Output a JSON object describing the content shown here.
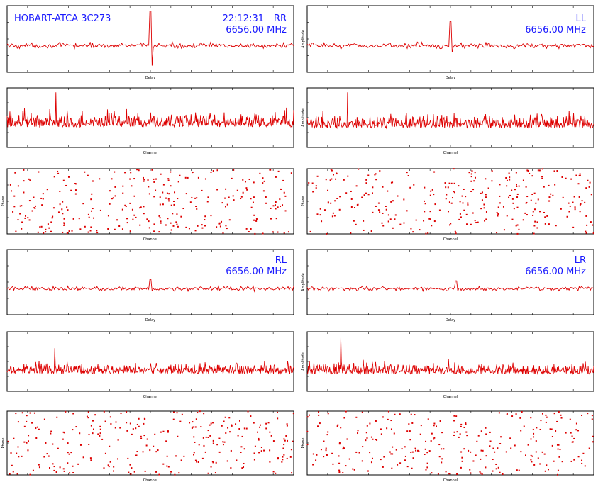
{
  "header": {
    "source": "HOBART-ATCA 3C273",
    "time": "22:12:31"
  },
  "colors": {
    "trace": "#dd0000",
    "annotation": "#1a1aff",
    "axis": "#000000"
  },
  "chart_data": [
    {
      "id": "rr-delay",
      "type": "line",
      "pol": "RR",
      "freq": "6656.00 MHz",
      "xlabel": "Delay",
      "ylabel": "",
      "xlim": [
        -256,
        256
      ],
      "ylim": [
        -1,
        1.5
      ],
      "baseline": 0,
      "noise": 0.07,
      "spike_x": 0,
      "spike_up": 1.3,
      "spike_down": -0.75,
      "points": 256
    },
    {
      "id": "ll-delay",
      "type": "line",
      "pol": "LL",
      "freq": "6656.00 MHz",
      "xlabel": "Delay",
      "ylabel": "Amplitude",
      "xlim": [
        -256,
        256
      ],
      "ylim": [
        -1,
        1.5
      ],
      "baseline": 0,
      "noise": 0.07,
      "spike_x": 0,
      "spike_up": 0.9,
      "spike_down": -0.25,
      "points": 256
    },
    {
      "id": "rr-channel",
      "type": "line",
      "pol": "RR",
      "xlabel": "Channel",
      "ylabel": "",
      "xlim": [
        0,
        512
      ],
      "ylim": [
        -0.5,
        1.5
      ],
      "baseline": 0.35,
      "noise": 0.28,
      "spike_x": 87,
      "spike_up": 1.0,
      "points": 512
    },
    {
      "id": "ll-channel",
      "type": "line",
      "pol": "LL",
      "xlabel": "Channel",
      "ylabel": "Amplitude",
      "xlim": [
        0,
        512
      ],
      "ylim": [
        -0.5,
        1.5
      ],
      "baseline": 0.3,
      "noise": 0.25,
      "spike_x": 72,
      "spike_up": 1.05,
      "points": 512
    },
    {
      "id": "rr-phase",
      "type": "scatter",
      "pol": "RR",
      "xlabel": "Channel",
      "ylabel": "Phase",
      "xlim": [
        0,
        512
      ],
      "ylim": [
        -180,
        180
      ],
      "wrapping": true,
      "points": 300
    },
    {
      "id": "ll-phase",
      "type": "scatter",
      "pol": "LL",
      "xlabel": "Channel",
      "ylabel": "Phase",
      "xlim": [
        0,
        512
      ],
      "ylim": [
        -180,
        180
      ],
      "wrapping": false,
      "points": 300
    },
    {
      "id": "rl-delay",
      "type": "line",
      "pol": "RL",
      "freq": "6656.00 MHz",
      "xlabel": "Delay",
      "ylabel": "",
      "xlim": [
        -256,
        256
      ],
      "ylim": [
        -1,
        1.5
      ],
      "baseline": 0,
      "noise": 0.06,
      "spike_x": 0,
      "spike_up": 0.35,
      "spike_down": -0.1,
      "points": 256
    },
    {
      "id": "lr-delay",
      "type": "line",
      "pol": "LR",
      "freq": "6656.00 MHz",
      "xlabel": "Delay",
      "ylabel": "Amplitude",
      "xlim": [
        -256,
        256
      ],
      "ylim": [
        -1,
        1.5
      ],
      "baseline": 0,
      "noise": 0.06,
      "spike_x": 10,
      "spike_up": 0.3,
      "spike_down": -0.1,
      "points": 256
    },
    {
      "id": "rl-channel",
      "type": "line",
      "pol": "RL",
      "xlabel": "Channel",
      "ylabel": "",
      "xlim": [
        0,
        512
      ],
      "ylim": [
        -0.5,
        1.5
      ],
      "baseline": 0.2,
      "noise": 0.18,
      "spike_x": 85,
      "spike_up": 0.75,
      "points": 512
    },
    {
      "id": "lr-channel",
      "type": "line",
      "pol": "LR",
      "xlabel": "Channel",
      "ylabel": "Amplitude",
      "xlim": [
        0,
        512
      ],
      "ylim": [
        -0.5,
        1.5
      ],
      "baseline": 0.2,
      "noise": 0.2,
      "spike_x": 60,
      "spike_up": 1.1,
      "points": 512
    },
    {
      "id": "rl-phase",
      "type": "scatter",
      "pol": "RL",
      "xlabel": "Channel",
      "ylabel": "Phase",
      "xlim": [
        0,
        512
      ],
      "ylim": [
        -180,
        180
      ],
      "wrapping": false,
      "points": 280
    },
    {
      "id": "lr-phase",
      "type": "scatter",
      "pol": "LR",
      "xlabel": "Channel",
      "ylabel": "Phase",
      "xlim": [
        0,
        512
      ],
      "ylim": [
        -180,
        180
      ],
      "wrapping": false,
      "points": 280
    }
  ]
}
